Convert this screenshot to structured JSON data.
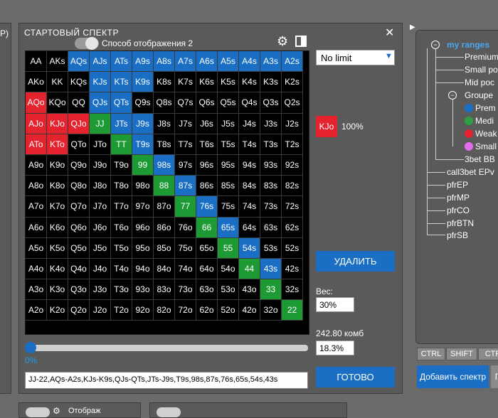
{
  "left_panel": {
    "partial_text": "P)"
  },
  "window": {
    "title": "СТАРТОВЫЙ СПЕКТР",
    "close_glyph": "✕",
    "display_mode_label": "Способ отображения 2",
    "icons": [
      "gear-icon",
      "layout-icon",
      "close-icon"
    ]
  },
  "grid": {
    "rows": [
      [
        "AA",
        "AKs",
        "AQs",
        "AJs",
        "ATs",
        "A9s",
        "A8s",
        "A7s",
        "A6s",
        "A5s",
        "A4s",
        "A3s",
        "A2s"
      ],
      [
        "AKo",
        "KK",
        "KQs",
        "KJs",
        "KTs",
        "K9s",
        "K8s",
        "K7s",
        "K6s",
        "K5s",
        "K4s",
        "K3s",
        "K2s"
      ],
      [
        "AQo",
        "KQo",
        "QQ",
        "QJs",
        "QTs",
        "Q9s",
        "Q8s",
        "Q7s",
        "Q6s",
        "Q5s",
        "Q4s",
        "Q3s",
        "Q2s"
      ],
      [
        "AJo",
        "KJo",
        "QJo",
        "JJ",
        "JTs",
        "J9s",
        "J8s",
        "J7s",
        "J6s",
        "J5s",
        "J4s",
        "J3s",
        "J2s"
      ],
      [
        "ATo",
        "KTo",
        "QTo",
        "JTo",
        "TT",
        "T9s",
        "T8s",
        "T7s",
        "T6s",
        "T5s",
        "T4s",
        "T3s",
        "T2s"
      ],
      [
        "A9o",
        "K9o",
        "Q9o",
        "J9o",
        "T9o",
        "99",
        "98s",
        "97s",
        "96s",
        "95s",
        "94s",
        "93s",
        "92s"
      ],
      [
        "A8o",
        "K8o",
        "Q8o",
        "J8o",
        "T8o",
        "98o",
        "88",
        "87s",
        "86s",
        "85s",
        "84s",
        "83s",
        "82s"
      ],
      [
        "A7o",
        "K7o",
        "Q7o",
        "J7o",
        "T7o",
        "97o",
        "87o",
        "77",
        "76s",
        "75s",
        "74s",
        "73s",
        "72s"
      ],
      [
        "A6o",
        "K6o",
        "Q6o",
        "J6o",
        "T6o",
        "96o",
        "86o",
        "76o",
        "66",
        "65s",
        "64s",
        "63s",
        "62s"
      ],
      [
        "A5o",
        "K5o",
        "Q5o",
        "J5o",
        "T5o",
        "95o",
        "85o",
        "75o",
        "65o",
        "55",
        "54s",
        "53s",
        "52s"
      ],
      [
        "A4o",
        "K4o",
        "Q4o",
        "J4o",
        "T4o",
        "94o",
        "84o",
        "74o",
        "64o",
        "54o",
        "44",
        "43s",
        "42s"
      ],
      [
        "A3o",
        "K3o",
        "Q3o",
        "J3o",
        "T3o",
        "93o",
        "83o",
        "73o",
        "63o",
        "53o",
        "43o",
        "33",
        "32s"
      ],
      [
        "A2o",
        "K2o",
        "Q2o",
        "J2o",
        "T2o",
        "92o",
        "82o",
        "72o",
        "62o",
        "52o",
        "42o",
        "32o",
        "22"
      ]
    ],
    "colors": [
      [
        "k",
        "k",
        "b",
        "b",
        "b",
        "b",
        "b",
        "b",
        "b",
        "b",
        "b",
        "b",
        "b"
      ],
      [
        "k",
        "k",
        "k",
        "b",
        "b",
        "b",
        "k",
        "k",
        "k",
        "k",
        "k",
        "k",
        "k"
      ],
      [
        "r",
        "k",
        "k",
        "b",
        "b",
        "k",
        "k",
        "k",
        "k",
        "k",
        "k",
        "k",
        "k"
      ],
      [
        "r",
        "r",
        "r",
        "g",
        "b",
        "b",
        "k",
        "k",
        "k",
        "k",
        "k",
        "k",
        "k"
      ],
      [
        "r",
        "r",
        "k",
        "k",
        "g",
        "b",
        "k",
        "k",
        "k",
        "k",
        "k",
        "k",
        "k"
      ],
      [
        "k",
        "k",
        "k",
        "k",
        "k",
        "g",
        "b",
        "k",
        "k",
        "k",
        "k",
        "k",
        "k"
      ],
      [
        "k",
        "k",
        "k",
        "k",
        "k",
        "k",
        "g",
        "b",
        "k",
        "k",
        "k",
        "k",
        "k"
      ],
      [
        "k",
        "k",
        "k",
        "k",
        "k",
        "k",
        "k",
        "g",
        "b",
        "k",
        "k",
        "k",
        "k"
      ],
      [
        "k",
        "k",
        "k",
        "k",
        "k",
        "k",
        "k",
        "k",
        "g",
        "b",
        "k",
        "k",
        "k"
      ],
      [
        "k",
        "k",
        "k",
        "k",
        "k",
        "k",
        "k",
        "k",
        "k",
        "g",
        "b",
        "k",
        "k"
      ],
      [
        "k",
        "k",
        "k",
        "k",
        "k",
        "k",
        "k",
        "k",
        "k",
        "k",
        "g",
        "b",
        "k"
      ],
      [
        "k",
        "k",
        "k",
        "k",
        "k",
        "k",
        "k",
        "k",
        "k",
        "k",
        "k",
        "g",
        "k"
      ],
      [
        "k",
        "k",
        "k",
        "k",
        "k",
        "k",
        "k",
        "k",
        "k",
        "k",
        "k",
        "k",
        "g"
      ]
    ],
    "palette": {
      "k": "#000000",
      "b": "#1a6fc4",
      "r": "#e5232f",
      "g": "#1e9a34"
    }
  },
  "controls": {
    "mode_select_value": "No limit",
    "selected_hand": "KJo",
    "selected_hand_percent": "100%",
    "delete_label": "УДАЛИТЬ",
    "weight_label": "Вес:",
    "weight_value": "30%",
    "combos_label": "242.80 комб",
    "range_percent": "18.3%",
    "done_label": "ГОТОВО",
    "slider_value_label": "0%",
    "slider_fraction": 0,
    "range_string": "JJ-22,AQs-A2s,KJs-K9s,QJs-QTs,JTs-J9s,T9s,98s,87s,76s,65s,54s,43s"
  },
  "tree": {
    "root": "my ranges",
    "items": [
      {
        "label": "Premium"
      },
      {
        "label": "Small po"
      },
      {
        "label": "Mid poc"
      },
      {
        "label": "Groupe"
      },
      {
        "label": "Prem",
        "dot": "#1a6fc4"
      },
      {
        "label": "Medi",
        "dot": "#2ea043"
      },
      {
        "label": "Weak",
        "dot": "#e5232f"
      },
      {
        "label": "Small",
        "dot": "#e46ef0"
      },
      {
        "label": "3bet BB"
      },
      {
        "label": "call3bet EPv"
      },
      {
        "label": "pfrEP"
      },
      {
        "label": "pfrMP"
      },
      {
        "label": "pfrCO"
      },
      {
        "label": "pfrBTN"
      },
      {
        "label": "pfrSB"
      }
    ],
    "keys": [
      "CTRL",
      "SHIFT",
      "CTR"
    ],
    "add_button": "Добавить спектр",
    "extra_button": "П"
  },
  "bottom": {
    "partial_text": "Отображ"
  }
}
